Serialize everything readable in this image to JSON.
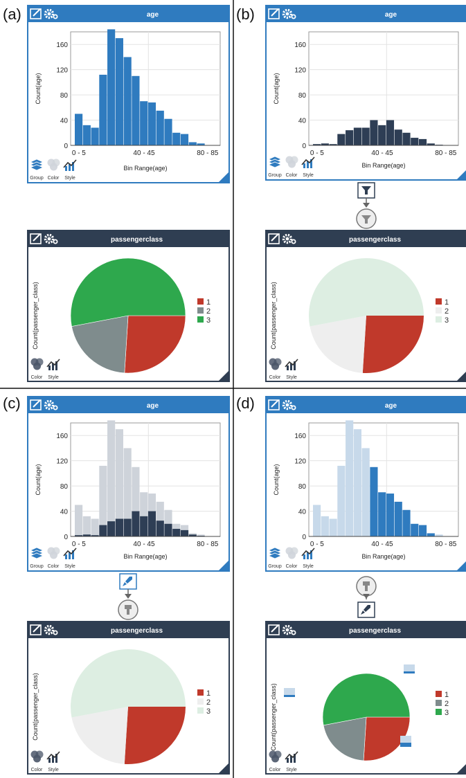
{
  "panels": [
    {
      "letter": "(a)",
      "histogram": {
        "title": "age",
        "ylabel": "Count(age)",
        "xlabel": "Bin Range(age)",
        "x_ticks": [
          "0 - 5",
          "40 - 45",
          "80 - 85"
        ],
        "y_ticks": [
          "0",
          "40",
          "80",
          "120",
          "160"
        ],
        "footer_labels": [
          "Group",
          "Color",
          "Style"
        ],
        "footer_icons": [
          "layers-icon",
          "color-circles-icon",
          "style-chart-icon"
        ]
      },
      "connector": null,
      "pie": {
        "title": "passengerclass",
        "ylabel": "Count(passenger_class)",
        "legend": [
          "1",
          "2",
          "3"
        ],
        "footer_labels": [
          "Color",
          "Style"
        ],
        "footer_icons": [
          "color-circles-icon",
          "style-chart-icon"
        ]
      }
    },
    {
      "letter": "(b)",
      "histogram": {
        "title": "age",
        "ylabel": "Count(age)",
        "xlabel": "Bin Range(age)",
        "x_ticks": [
          "0 - 5",
          "40 - 45",
          "80 - 85"
        ],
        "y_ticks": [
          "0",
          "40",
          "80",
          "120",
          "160"
        ],
        "footer_labels": [
          "Group",
          "Color",
          "Style"
        ],
        "footer_icons": [
          "layers-icon",
          "color-circles-icon",
          "style-chart-icon"
        ]
      },
      "connector": "filter",
      "pie": {
        "title": "passengerclass",
        "ylabel": "Count(passenger_class)",
        "legend": [
          "1",
          "2",
          "3"
        ],
        "footer_labels": [
          "Color",
          "Style"
        ],
        "footer_icons": [
          "color-circles-icon",
          "style-chart-icon"
        ]
      }
    },
    {
      "letter": "(c)",
      "histogram": {
        "title": "age",
        "ylabel": "Count(age)",
        "xlabel": "Bin Range(age)",
        "x_ticks": [
          "0 - 5",
          "40 - 45",
          "80 - 85"
        ],
        "y_ticks": [
          "0",
          "40",
          "80",
          "120",
          "160"
        ],
        "footer_labels": [
          "Group",
          "Color",
          "Style"
        ],
        "footer_icons": [
          "layers-icon",
          "color-circles-icon",
          "style-chart-icon"
        ]
      },
      "connector": "brush-down",
      "pie": {
        "title": "passengerclass",
        "ylabel": "Count(passenger_class)",
        "legend": [
          "1",
          "2",
          "3"
        ],
        "footer_labels": [
          "Color",
          "Style"
        ],
        "footer_icons": [
          "color-circles-icon",
          "style-chart-icon"
        ]
      }
    },
    {
      "letter": "(d)",
      "histogram": {
        "title": "age",
        "ylabel": "Count(age)",
        "xlabel": "Bin Range(age)",
        "x_ticks": [
          "0 - 5",
          "40 - 45",
          "80 - 85"
        ],
        "y_ticks": [
          "0",
          "40",
          "80",
          "120",
          "160"
        ],
        "footer_labels": [
          "Group",
          "Color",
          "Style"
        ],
        "footer_icons": [
          "layers-icon",
          "color-circles-icon",
          "style-chart-icon"
        ]
      },
      "connector": "brush-up",
      "pie": {
        "title": "passengerclass",
        "ylabel": "Count(passenger_class)",
        "legend": [
          "1",
          "2",
          "3"
        ],
        "footer_labels": [
          "Color",
          "Style"
        ],
        "footer_icons": [
          "color-circles-icon",
          "style-chart-icon"
        ]
      }
    }
  ],
  "chart_data": {
    "type": "bar",
    "histogram_bins": [
      "0 - 5",
      "5 - 10",
      "10 - 15",
      "15 - 20",
      "20 - 25",
      "25 - 30",
      "30 - 35",
      "35 - 40",
      "40 - 45",
      "45 - 50",
      "50 - 55",
      "55 - 60",
      "60 - 65",
      "65 - 70",
      "70 - 75",
      "75 - 80",
      "80 - 85"
    ],
    "age_counts_all": [
      50,
      32,
      28,
      112,
      184,
      170,
      140,
      110,
      70,
      68,
      55,
      42,
      20,
      18,
      5,
      3,
      0
    ],
    "age_counts_first_class": [
      2,
      3,
      2,
      18,
      24,
      28,
      28,
      40,
      32,
      40,
      25,
      20,
      12,
      10,
      3,
      1,
      0
    ],
    "ylim": [
      0,
      180
    ],
    "pie_classes": [
      "1",
      "2",
      "3"
    ],
    "pie_values": [
      26,
      21,
      53
    ],
    "colors": {
      "blue": "#2f7bbf",
      "dark": "#2e3e55",
      "gray_bar": "#ced3da",
      "light_blue": "#c7d9ea",
      "class1": "#c0392b",
      "class2": "#7f8c8d",
      "class3": "#2ea84d",
      "faded2": "#eeeeee",
      "faded3": "#ddeee2",
      "header": "#2f7bbf",
      "header_dark": "#2f3e52"
    }
  }
}
